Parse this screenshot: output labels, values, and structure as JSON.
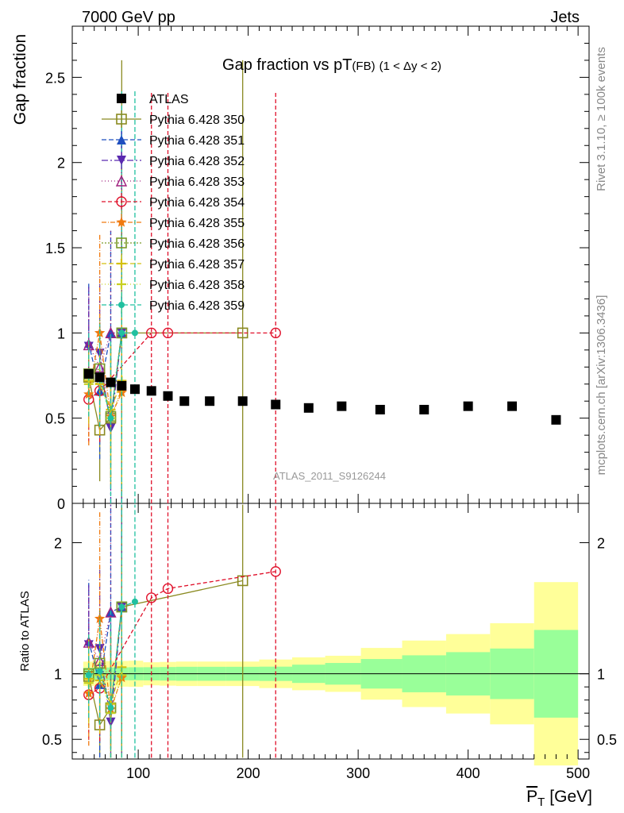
{
  "header": {
    "left": "7000 GeV pp",
    "right": "Jets"
  },
  "side": {
    "rivet": "Rivet 3.1.10, ≥ 100k events",
    "mcplots": "mcplots.cern.ch [arXiv:1306.3436]"
  },
  "chart_data": {
    "type": "scatter",
    "title_main": "Gap fraction vs pT",
    "title_sub": "(FB)",
    "title_range": "(1 < Δy < 2)",
    "watermark": "ATLAS_2011_S9126244",
    "ylabel_top": "Gap fraction",
    "ylabel_bottom": "Ratio to ATLAS",
    "xlabel": "P̅T [GeV]",
    "xlabel_base": "P",
    "xlabel_sub": "T",
    "xlabel_unit": "[GeV]",
    "xlim": [
      40,
      510
    ],
    "ylim_top": [
      0,
      2.8
    ],
    "ylim_bottom": [
      0.35,
      2.3
    ],
    "xticks": [
      100,
      200,
      300,
      400,
      500
    ],
    "yticks_top": [
      "0",
      "0.5",
      "1",
      "1.5",
      "2",
      "2.5"
    ],
    "yticks_bottom": [
      "0.5",
      "1",
      "2"
    ],
    "legend_position": "top-left",
    "atlas": {
      "name": "ATLAS",
      "x": [
        55,
        65,
        75,
        85,
        97,
        112,
        127,
        142,
        165,
        195,
        225,
        255,
        285,
        320,
        360,
        400,
        440,
        480
      ],
      "y": [
        0.76,
        0.74,
        0.71,
        0.69,
        0.67,
        0.66,
        0.63,
        0.6,
        0.6,
        0.6,
        0.58,
        0.56,
        0.57,
        0.55,
        0.55,
        0.57,
        0.57,
        0.49
      ],
      "band_inner": [
        0.02,
        0.02,
        0.02,
        0.02,
        0.02,
        0.02,
        0.02,
        0.02,
        0.02,
        0.02,
        0.02,
        0.025,
        0.03,
        0.04,
        0.05,
        0.06,
        0.07,
        0.11
      ],
      "band_outer": [
        0.04,
        0.04,
        0.04,
        0.04,
        0.04,
        0.035,
        0.035,
        0.035,
        0.035,
        0.035,
        0.04,
        0.045,
        0.05,
        0.07,
        0.09,
        0.11,
        0.14,
        0.23
      ]
    },
    "series": [
      {
        "name": "Pythia 6.428 350",
        "color": "#8a8a20",
        "marker": "square-open",
        "dash": "",
        "x": [
          55,
          65,
          75,
          85,
          195
        ],
        "y": [
          0.74,
          0.43,
          0.5,
          1.0,
          1.0
        ],
        "ratio": [
          0.98,
          0.61,
          0.74,
          1.51,
          1.71
        ],
        "yerr": [
          0.1,
          0.3,
          0.2,
          1.6,
          1.6
        ]
      },
      {
        "name": "Pythia 6.428 351",
        "color": "#1f4fbf",
        "marker": "triangle-up",
        "dash": "6,3",
        "x": [
          55,
          65,
          75,
          85
        ],
        "y": [
          0.94,
          0.66,
          1.0,
          1.0
        ],
        "ratio": [
          1.25,
          0.92,
          1.47,
          1.51
        ],
        "yerr": [
          0.35,
          0.4,
          0.6,
          1.2
        ]
      },
      {
        "name": "Pythia 6.428 352",
        "color": "#5a2ab0",
        "marker": "triangle-down",
        "dash": "8,3,2,3",
        "x": [
          55,
          65,
          75,
          85
        ],
        "y": [
          0.92,
          0.88,
          0.44,
          1.0
        ],
        "ratio": [
          1.22,
          1.19,
          0.63,
          1.51
        ],
        "yerr": [
          0.35,
          0.45,
          0.6,
          1.2
        ]
      },
      {
        "name": "Pythia 6.428 353",
        "color": "#a0207f",
        "marker": "triangle-up-open",
        "dash": "1,3",
        "x": [
          55,
          65,
          75,
          85
        ],
        "y": [
          0.93,
          0.8,
          1.0,
          1.0
        ],
        "ratio": [
          1.24,
          1.1,
          1.47,
          1.51
        ],
        "yerr": [
          0.3,
          0.4,
          0.6,
          1.2
        ]
      },
      {
        "name": "Pythia 6.428 354",
        "color": "#e0102a",
        "marker": "circle-open",
        "dash": "5,3",
        "x": [
          55,
          65,
          112,
          127,
          225
        ],
        "y": [
          0.61,
          0.66,
          1.0,
          1.0,
          1.0
        ],
        "ratio": [
          0.84,
          0.89,
          1.58,
          1.65,
          1.78
        ],
        "yerr": [
          0.25,
          0.3,
          1.42,
          1.42,
          1.42
        ]
      },
      {
        "name": "Pythia 6.428 355",
        "color": "#f07a10",
        "marker": "star",
        "dash": "6,2,1,2",
        "x": [
          55,
          65,
          75,
          85
        ],
        "y": [
          0.64,
          1.0,
          0.51,
          0.65
        ],
        "ratio": [
          0.85,
          1.42,
          0.73,
          0.97
        ],
        "yerr": [
          0.3,
          0.58,
          0.4,
          0.5
        ]
      },
      {
        "name": "Pythia 6.428 356",
        "color": "#7a9a2a",
        "marker": "square-open",
        "dash": "2,2",
        "x": [
          55,
          65,
          75,
          85
        ],
        "y": [
          0.76,
          0.79,
          0.51,
          1.0
        ],
        "ratio": [
          1.0,
          1.08,
          0.74,
          1.51
        ],
        "yerr": [
          0.2,
          0.3,
          0.4,
          1.0
        ]
      },
      {
        "name": "Pythia 6.428 357",
        "color": "#d4c010",
        "marker": "cross",
        "dash": "6,3",
        "x": [
          55,
          65,
          75,
          85
        ],
        "y": [
          0.72,
          0.7,
          0.55,
          0.72
        ],
        "ratio": [
          0.96,
          0.95,
          0.77,
          1.05
        ],
        "yerr": [
          0.25,
          0.3,
          0.4,
          0.6
        ]
      },
      {
        "name": "Pythia 6.428 358",
        "color": "#c8d020",
        "marker": "cross",
        "dash": "1,3",
        "x": [
          55,
          65,
          75,
          85
        ],
        "y": [
          0.7,
          0.73,
          0.5,
          0.68
        ],
        "ratio": [
          0.93,
          0.99,
          0.7,
          0.99
        ],
        "yerr": [
          0.25,
          0.3,
          0.4,
          0.6
        ]
      },
      {
        "name": "Pythia 6.428 359",
        "color": "#20c0a0",
        "marker": "dot",
        "dash": "6,3",
        "x": [
          55,
          65,
          75,
          85,
          97
        ],
        "y": [
          0.76,
          0.75,
          0.5,
          1.0,
          1.0
        ],
        "ratio": [
          0.99,
          1.02,
          0.74,
          1.51,
          1.55
        ],
        "yerr": [
          0.25,
          0.3,
          0.5,
          1.42,
          1.42
        ]
      }
    ]
  }
}
